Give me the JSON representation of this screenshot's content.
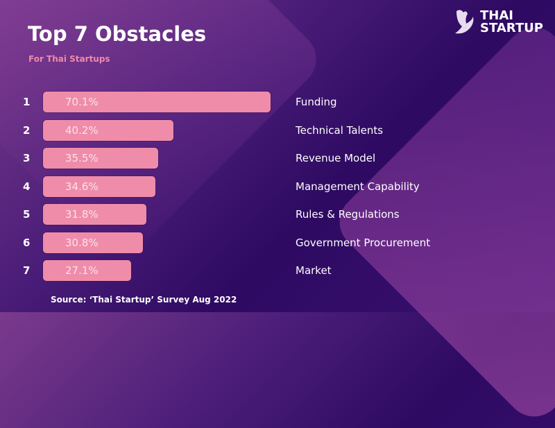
{
  "header": {
    "title": "Top 7 Obstacles",
    "subtitle": "For Thai Startups"
  },
  "logo": {
    "line1": "THAI",
    "line2": "STARTUP"
  },
  "source": "Source: ‘Thai Startup’ Survey Aug 2022",
  "colors": {
    "bar": "#ef8ca9",
    "subtitle": "#f08aa8"
  },
  "chart_data": {
    "type": "bar",
    "orientation": "horizontal",
    "title": "Top 7 Obstacles",
    "subtitle": "For Thai Startups",
    "ranks": [
      "1",
      "2",
      "3",
      "4",
      "5",
      "6",
      "7"
    ],
    "categories": [
      "Funding",
      "Technical Talents",
      "Revenue Model",
      "Management Capability",
      "Rules & Regulations",
      "Government Procurement",
      "Market"
    ],
    "values": [
      70.1,
      40.2,
      35.5,
      34.6,
      31.8,
      30.8,
      27.1
    ],
    "value_labels": [
      "70.1%",
      "40.2%",
      "35.5%",
      "34.6%",
      "31.8%",
      "30.8%",
      "27.1%"
    ],
    "unit": "%"
  }
}
